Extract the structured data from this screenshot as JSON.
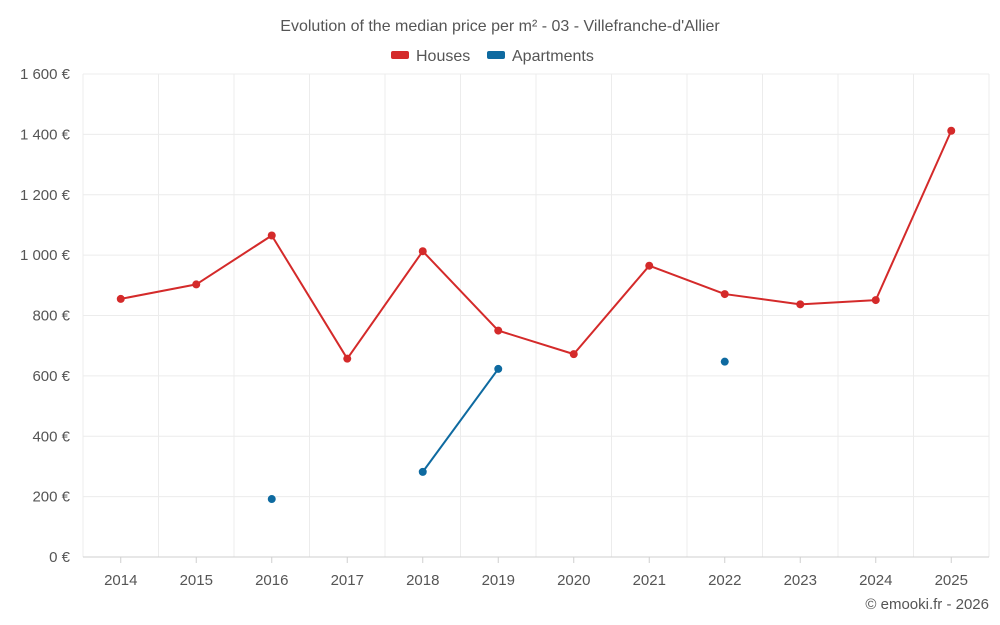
{
  "chart_data": {
    "type": "line",
    "title": "Evolution of the median price per m² - 03 - Villefranche-d'Allier",
    "categories": [
      "2014",
      "2015",
      "2016",
      "2017",
      "2018",
      "2019",
      "2020",
      "2021",
      "2022",
      "2023",
      "2024",
      "2025"
    ],
    "y_ticks": [
      "0 €",
      "200 €",
      "400 €",
      "600 €",
      "800 €",
      "1 000 €",
      "1 200 €",
      "1 400 €",
      "1 600 €"
    ],
    "ylim": [
      0,
      1600
    ],
    "y_step": 200,
    "grid": true,
    "legend_position": "top-center",
    "series": [
      {
        "name": "Houses",
        "color": "#d42a2a",
        "values": [
          855,
          903,
          1065,
          657,
          1013,
          750,
          672,
          965,
          871,
          837,
          851,
          1412
        ]
      },
      {
        "name": "Apartments",
        "color": "#0e6aa0",
        "values": [
          null,
          null,
          192,
          null,
          282,
          623,
          null,
          null,
          647,
          null,
          null,
          null
        ]
      }
    ],
    "credit": "© emooki.fr - 2026"
  }
}
